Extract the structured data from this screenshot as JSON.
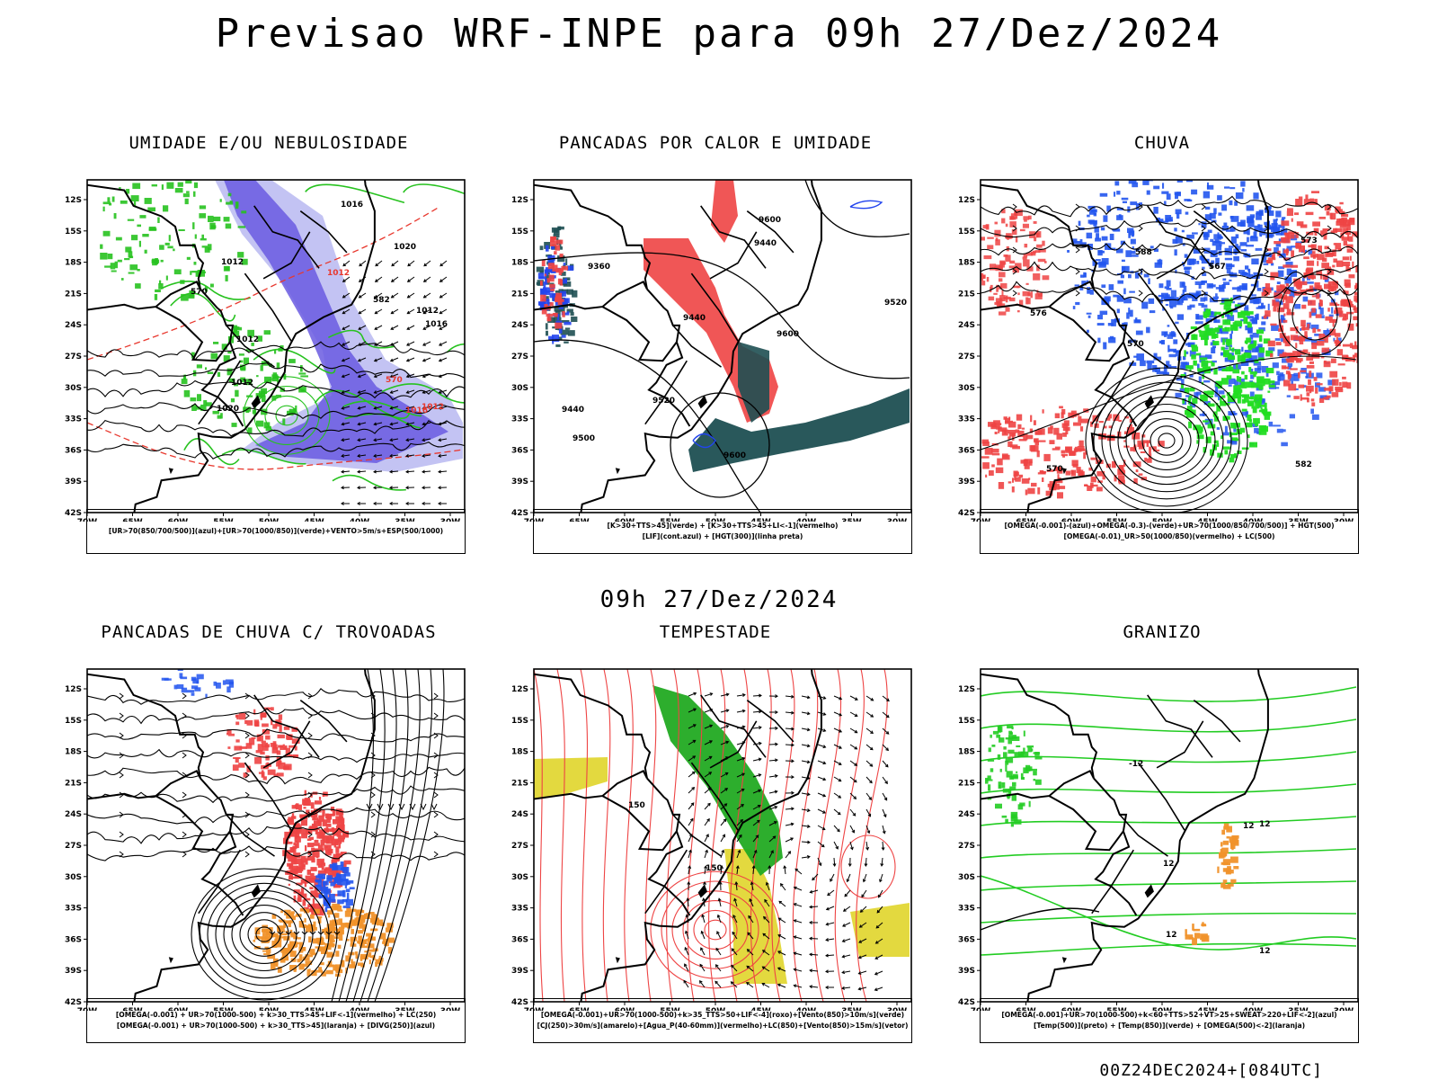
{
  "header": {
    "title": "Previsao WRF-INPE  para 09h 27/Dez/2024"
  },
  "mid_label": "09h 27/Dez/2024",
  "footer": {
    "run": "00Z24DEC2024+[084UTC]"
  },
  "axes": {
    "lat": [
      "12S",
      "15S",
      "18S",
      "21S",
      "24S",
      "27S",
      "30S",
      "33S",
      "36S",
      "39S",
      "42S"
    ],
    "lon": [
      "70W",
      "65W",
      "60W",
      "55W",
      "50W",
      "45W",
      "40W",
      "35W",
      "30W"
    ]
  },
  "panels": [
    {
      "id": "umidade",
      "title": "UMIDADE E/OU NEBULOSIDADE",
      "legend": [
        "[UR>70(850/700/500)](azul)+[UR>70(1000/850)](verde)+VENTO>5m/s+ESP(500/1000)"
      ],
      "labels": [
        "1012",
        "1012",
        "1012",
        "1016",
        "1012",
        "1012",
        "1012",
        "1016",
        "1016",
        "1020",
        "570",
        "570",
        "582",
        "1020"
      ],
      "colors": {
        "blue": "#6a5be0",
        "lightblue": "#b4b4f0",
        "green": "#27c21f",
        "red": "#e8382e"
      }
    },
    {
      "id": "pancadas_calor",
      "title": "PANCADAS POR CALOR E UMIDADE",
      "legend": [
        "[K>30+TTS>45](verde) + [K>30+TTS>45+LI<-1](vermelho)",
        "[LIF](cont.azul) + [HGT(300)](linha preta)"
      ],
      "labels": [
        "9600",
        "9600",
        "9520",
        "9600",
        "9520",
        "9500",
        "9440",
        "9440",
        "9440",
        "9360"
      ],
      "colors": {
        "red": "#ee4444",
        "teal": "#1e4f52",
        "blue": "#2244ee"
      }
    },
    {
      "id": "chuva",
      "title": "CHUVA",
      "legend": [
        "[OMEGA(-0.001)-(azul)+OMEGA(-0.3)-(verde)+UR>70(1000/850/700/500)] + HGT(500)",
        "[OMEGA(-0.01)_UR>50(1000/850)(vermelho) + LC(500)"
      ],
      "labels": [
        "582",
        "576",
        "573",
        "570",
        "567",
        "570",
        "588"
      ],
      "colors": {
        "red": "#ee4444",
        "blue": "#2255ee",
        "green": "#22dd22"
      }
    },
    {
      "id": "pancadas_trovoadas",
      "title": "PANCADAS DE CHUVA C/ TROVOADAS",
      "legend": [
        "[OMEGA(-0.001) + UR>70(1000-500) + k>30_TTS>45+LIF<-1](vermelho) + LC(250)",
        "[OMEGA(-0.001) + UR>70(1000-500) + k>30_TTS>45](laranja) + [DIVG(250)](azul)"
      ],
      "labels": [],
      "colors": {
        "red": "#ee4444",
        "orange": "#f0922b",
        "blue": "#2255ee"
      }
    },
    {
      "id": "tempestade",
      "title": "TEMPESTADE",
      "legend": [
        "[OMEGA(-0.001)+UR>70(1000-500)+k>35_TTS>50+LIF<-4](roxo)+[Vento(850)>10m/s](verde)",
        "[CJ(250)>30m/s](amarelo)+[Agua_P(40-60mm)](vermelho)+LC(850)+[Vento(850)>15m/s](vetor)"
      ],
      "labels": [
        "150",
        "150"
      ],
      "colors": {
        "green": "#22aa22",
        "yellow": "#e0d52a",
        "red": "#ee4444"
      }
    },
    {
      "id": "granizo",
      "title": "GRANIZO",
      "legend": [
        "[OMEGA(-0.001)+UR>70(1000-500)+k<60+TTS>52+VT>25+SWEAT>220+LIF<-2](azul)",
        "[Temp(500)](preto) + [Temp(850)](verde) + [OMEGA(500)<-2](laranja)"
      ],
      "labels": [
        "12",
        "12",
        "12",
        "12",
        "12",
        "-12"
      ],
      "colors": {
        "green": "#22cc22",
        "orange": "#f0922b"
      }
    }
  ]
}
